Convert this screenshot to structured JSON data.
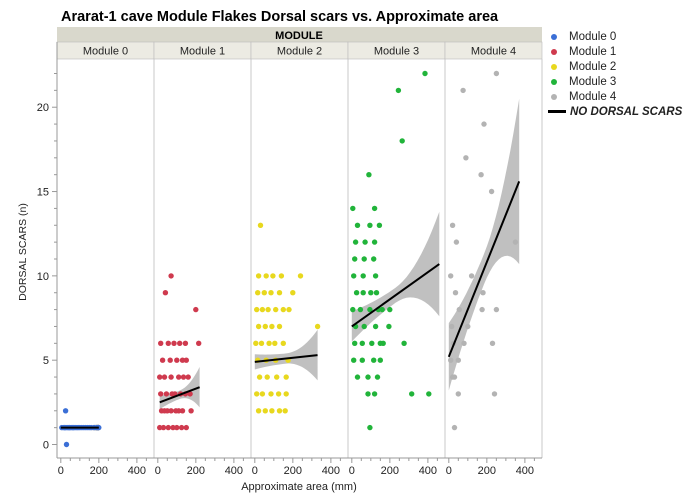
{
  "chart_data": {
    "type": "scatter",
    "title": "Ararat-1 cave Module Flakes Dorsal scars vs. Approximate area",
    "group_header": "MODULE",
    "panels": [
      "Module 0",
      "Module 1",
      "Module 2",
      "Module 3",
      "Module 4"
    ],
    "xlabel": "Approximate area (mm)",
    "ylabel": "DORSAL SCARS (n)",
    "xlim": [
      -20,
      490
    ],
    "ylim": [
      -0.8,
      22.8
    ],
    "x_ticks": [
      0,
      200,
      400
    ],
    "y_ticks": [
      0,
      5,
      10,
      15,
      20
    ],
    "grid": false,
    "legend_position": "right",
    "legend": [
      {
        "label": "Module 0",
        "color": "#3b6fd6"
      },
      {
        "label": "Module 1",
        "color": "#cf3a4e"
      },
      {
        "label": "Module 2",
        "color": "#e8d81e"
      },
      {
        "label": "Module 3",
        "color": "#21b43a"
      },
      {
        "label": "Module 4",
        "color": "#b3b3b3"
      }
    ],
    "fit_label": "NO DORSAL SCARS",
    "series": [
      {
        "name": "Module 0",
        "color": "#3b6fd6",
        "points": [
          [
            25,
            2
          ],
          [
            30,
            0
          ],
          [
            5,
            1
          ],
          [
            15,
            1
          ],
          [
            22,
            1
          ],
          [
            28,
            1
          ],
          [
            35,
            1
          ],
          [
            40,
            1
          ],
          [
            48,
            1
          ],
          [
            55,
            1
          ],
          [
            62,
            1
          ],
          [
            70,
            1
          ],
          [
            78,
            1
          ],
          [
            85,
            1
          ],
          [
            92,
            1
          ],
          [
            100,
            1
          ],
          [
            110,
            1
          ],
          [
            120,
            1
          ],
          [
            130,
            1
          ],
          [
            140,
            1
          ],
          [
            150,
            1
          ],
          [
            160,
            1
          ],
          [
            175,
            1
          ],
          [
            190,
            1
          ],
          [
            200,
            1
          ],
          [
            20,
            1
          ],
          [
            45,
            1
          ],
          [
            65,
            1
          ]
        ],
        "fit": {
          "x": [
            0,
            200
          ],
          "y": [
            1.0,
            1.0
          ]
        },
        "band_width": [
          0.15,
          0.12,
          0.2
        ]
      },
      {
        "name": "Module 1",
        "color": "#cf3a4e",
        "points": [
          [
            70,
            10
          ],
          [
            40,
            9
          ],
          [
            200,
            8
          ],
          [
            15,
            6
          ],
          [
            55,
            6
          ],
          [
            85,
            6
          ],
          [
            115,
            6
          ],
          [
            145,
            6
          ],
          [
            215,
            6
          ],
          [
            25,
            5
          ],
          [
            65,
            5
          ],
          [
            100,
            5
          ],
          [
            130,
            5
          ],
          [
            150,
            5
          ],
          [
            10,
            4
          ],
          [
            35,
            4
          ],
          [
            70,
            4
          ],
          [
            110,
            4
          ],
          [
            135,
            4
          ],
          [
            160,
            4
          ],
          [
            15,
            3
          ],
          [
            45,
            3
          ],
          [
            75,
            3
          ],
          [
            90,
            3
          ],
          [
            120,
            3
          ],
          [
            145,
            3
          ],
          [
            170,
            3
          ],
          [
            20,
            2
          ],
          [
            35,
            2
          ],
          [
            50,
            2
          ],
          [
            70,
            2
          ],
          [
            95,
            2
          ],
          [
            110,
            2
          ],
          [
            130,
            2
          ],
          [
            175,
            2
          ],
          [
            10,
            1
          ],
          [
            30,
            1
          ],
          [
            55,
            1
          ],
          [
            80,
            1
          ],
          [
            100,
            1
          ],
          [
            125,
            1
          ],
          [
            150,
            1
          ]
        ],
        "fit": {
          "x": [
            10,
            220
          ],
          "y": [
            2.5,
            3.4
          ]
        },
        "band_width": [
          0.4,
          0.25,
          1.2
        ]
      },
      {
        "name": "Module 2",
        "color": "#e8d81e",
        "points": [
          [
            30,
            13
          ],
          [
            20,
            10
          ],
          [
            60,
            10
          ],
          [
            95,
            10
          ],
          [
            140,
            10
          ],
          [
            240,
            10
          ],
          [
            15,
            9
          ],
          [
            50,
            9
          ],
          [
            85,
            9
          ],
          [
            130,
            9
          ],
          [
            200,
            9
          ],
          [
            10,
            8
          ],
          [
            40,
            8
          ],
          [
            70,
            8
          ],
          [
            110,
            8
          ],
          [
            150,
            8
          ],
          [
            180,
            8
          ],
          [
            20,
            7
          ],
          [
            55,
            7
          ],
          [
            90,
            7
          ],
          [
            130,
            7
          ],
          [
            330,
            7
          ],
          [
            5,
            6
          ],
          [
            35,
            6
          ],
          [
            75,
            6
          ],
          [
            105,
            6
          ],
          [
            150,
            6
          ],
          [
            15,
            5
          ],
          [
            60,
            5
          ],
          [
            110,
            5
          ],
          [
            175,
            5
          ],
          [
            25,
            4
          ],
          [
            65,
            4
          ],
          [
            115,
            4
          ],
          [
            165,
            4
          ],
          [
            10,
            3
          ],
          [
            40,
            3
          ],
          [
            85,
            3
          ],
          [
            125,
            3
          ],
          [
            165,
            3
          ],
          [
            20,
            2
          ],
          [
            55,
            2
          ],
          [
            90,
            2
          ],
          [
            130,
            2
          ],
          [
            160,
            2
          ]
        ],
        "fit": {
          "x": [
            0,
            330
          ],
          "y": [
            4.9,
            5.3
          ]
        },
        "band_width": [
          0.45,
          0.3,
          1.5
        ]
      },
      {
        "name": "Module 3",
        "color": "#21b43a",
        "points": [
          [
            385,
            22
          ],
          [
            245,
            21
          ],
          [
            265,
            18
          ],
          [
            90,
            16
          ],
          [
            5,
            14
          ],
          [
            120,
            14
          ],
          [
            30,
            13
          ],
          [
            95,
            13
          ],
          [
            145,
            13
          ],
          [
            20,
            12
          ],
          [
            70,
            12
          ],
          [
            120,
            12
          ],
          [
            15,
            11
          ],
          [
            65,
            11
          ],
          [
            115,
            11
          ],
          [
            10,
            10
          ],
          [
            60,
            10
          ],
          [
            125,
            10
          ],
          [
            25,
            9
          ],
          [
            60,
            9
          ],
          [
            100,
            9
          ],
          [
            130,
            9
          ],
          [
            5,
            8
          ],
          [
            45,
            8
          ],
          [
            95,
            8
          ],
          [
            140,
            8
          ],
          [
            160,
            8
          ],
          [
            200,
            8
          ],
          [
            20,
            7
          ],
          [
            65,
            7
          ],
          [
            125,
            7
          ],
          [
            195,
            7
          ],
          [
            15,
            6
          ],
          [
            55,
            6
          ],
          [
            105,
            6
          ],
          [
            150,
            6
          ],
          [
            165,
            6
          ],
          [
            275,
            6
          ],
          [
            10,
            5
          ],
          [
            55,
            5
          ],
          [
            115,
            5
          ],
          [
            150,
            5
          ],
          [
            30,
            4
          ],
          [
            85,
            4
          ],
          [
            135,
            4
          ],
          [
            85,
            3
          ],
          [
            120,
            3
          ],
          [
            315,
            3
          ],
          [
            405,
            3
          ],
          [
            95,
            1
          ]
        ],
        "fit": {
          "x": [
            0,
            460
          ],
          "y": [
            7.0,
            10.7
          ]
        },
        "band_width": [
          0.9,
          0.45,
          3.1
        ]
      },
      {
        "name": "Module 4",
        "color": "#b3b3b3",
        "points": [
          [
            250,
            22
          ],
          [
            75,
            21
          ],
          [
            185,
            19
          ],
          [
            90,
            17
          ],
          [
            170,
            16
          ],
          [
            225,
            15
          ],
          [
            20,
            13
          ],
          [
            350,
            12
          ],
          [
            40,
            12
          ],
          [
            10,
            10
          ],
          [
            120,
            10
          ],
          [
            35,
            9
          ],
          [
            180,
            9
          ],
          [
            55,
            8
          ],
          [
            175,
            8
          ],
          [
            250,
            8
          ],
          [
            15,
            7
          ],
          [
            100,
            7
          ],
          [
            25,
            6
          ],
          [
            80,
            6
          ],
          [
            230,
            6
          ],
          [
            10,
            5
          ],
          [
            50,
            5
          ],
          [
            20,
            4
          ],
          [
            30,
            4
          ],
          [
            50,
            3
          ],
          [
            240,
            3
          ],
          [
            30,
            1
          ]
        ],
        "fit": {
          "x": [
            0,
            370
          ],
          "y": [
            5.2,
            15.6
          ]
        },
        "band_width": [
          2.0,
          0.9,
          4.9
        ]
      }
    ]
  }
}
